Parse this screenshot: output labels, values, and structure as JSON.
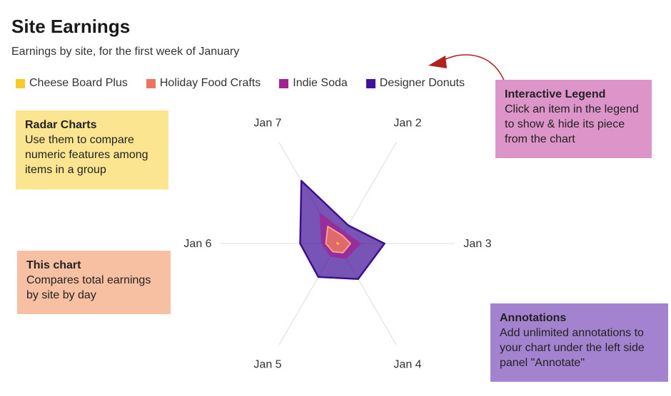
{
  "header": {
    "title": "Site Earnings",
    "subtitle": "Earnings by site, for the first week of January"
  },
  "legend": {
    "items": [
      {
        "label": "Cheese Board Plus",
        "color": "#f8ca25"
      },
      {
        "label": "Holiday Food Crafts",
        "color": "#ea7560"
      },
      {
        "label": "Indie Soda",
        "color": "#a3218f"
      },
      {
        "label": "Designer Donuts",
        "color": "#42129a"
      }
    ]
  },
  "annotations": {
    "radar": {
      "title": "Radar Charts",
      "body": "Use them to compare numeric features among items in a group"
    },
    "chart": {
      "title": "This chart",
      "body": "Compares total earnings by site by day"
    },
    "legend": {
      "title": "Interactive Legend",
      "body": "Click an item in the legend to show & hide its piece from the chart"
    },
    "annotate": {
      "title": "Annotations",
      "body": "Add unlimited annotations to your chart under the left side panel \"Annotate\""
    }
  },
  "colors": {
    "cheese": "#f8ca25",
    "holiday": "#ea7560",
    "indie": "#a3218f",
    "donuts": "#42129a",
    "arrow": "#b22020",
    "grid": "#dddddd"
  },
  "chart_data": {
    "type": "radar",
    "categories": [
      "Jan 2",
      "Jan 3",
      "Jan 4",
      "Jan 5",
      "Jan 6",
      "Jan 7"
    ],
    "rmax": 100,
    "series": [
      {
        "name": "Designer Donuts",
        "values": [
          18,
          40,
          35,
          33,
          32,
          62
        ]
      },
      {
        "name": "Indie Soda",
        "values": [
          12,
          20,
          15,
          13,
          14,
          31
        ]
      },
      {
        "name": "Holiday Food Crafts",
        "values": [
          8,
          11,
          9,
          8,
          10,
          17
        ]
      },
      {
        "name": "Cheese Board Plus",
        "values": [
          1,
          2,
          1,
          1,
          1,
          2
        ]
      }
    ],
    "grid": true
  }
}
